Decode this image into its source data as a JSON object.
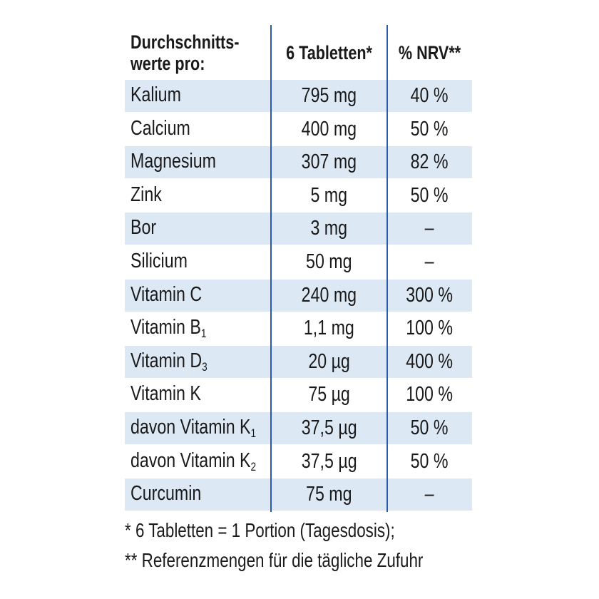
{
  "header": {
    "col1_line1": "Durchschnitts-",
    "col1_line2": "werte pro:",
    "col2": "6 Tabletten*",
    "col3": "% NRV**"
  },
  "rows": [
    {
      "name": "Kalium",
      "sub": "",
      "amount": "795 mg",
      "nrv": "40 %"
    },
    {
      "name": "Calcium",
      "sub": "",
      "amount": "400 mg",
      "nrv": "50 %"
    },
    {
      "name": "Magnesium",
      "sub": "",
      "amount": "307 mg",
      "nrv": "82 %"
    },
    {
      "name": "Zink",
      "sub": "",
      "amount": "5 mg",
      "nrv": "50 %"
    },
    {
      "name": "Bor",
      "sub": "",
      "amount": "3 mg",
      "nrv": "–"
    },
    {
      "name": "Silicium",
      "sub": "",
      "amount": "50 mg",
      "nrv": "–"
    },
    {
      "name": "Vitamin C",
      "sub": "",
      "amount": "240 mg",
      "nrv": "300 %"
    },
    {
      "name": "Vitamin B",
      "sub": "1",
      "amount": "1,1 mg",
      "nrv": "100 %"
    },
    {
      "name": "Vitamin D",
      "sub": "3",
      "amount": "20 µg",
      "nrv": "400 %"
    },
    {
      "name": "Vitamin K",
      "sub": "",
      "amount": "75 µg",
      "nrv": "100 %"
    },
    {
      "name": "davon Vitamin K",
      "sub": "1",
      "amount": "37,5 µg",
      "nrv": "50 %"
    },
    {
      "name": "davon Vitamin K",
      "sub": "2",
      "amount": "37,5 µg",
      "nrv": "50 %"
    },
    {
      "name": "Curcumin",
      "sub": "",
      "amount": "75 mg",
      "nrv": "–"
    }
  ],
  "footnotes": [
    "* 6 Tabletten = 1 Portion (Tagesdosis);",
    "** Referenzmengen für die tägliche Zufuhr"
  ],
  "colors": {
    "shade": "#dde8f5",
    "line": "#2a5aa8"
  }
}
